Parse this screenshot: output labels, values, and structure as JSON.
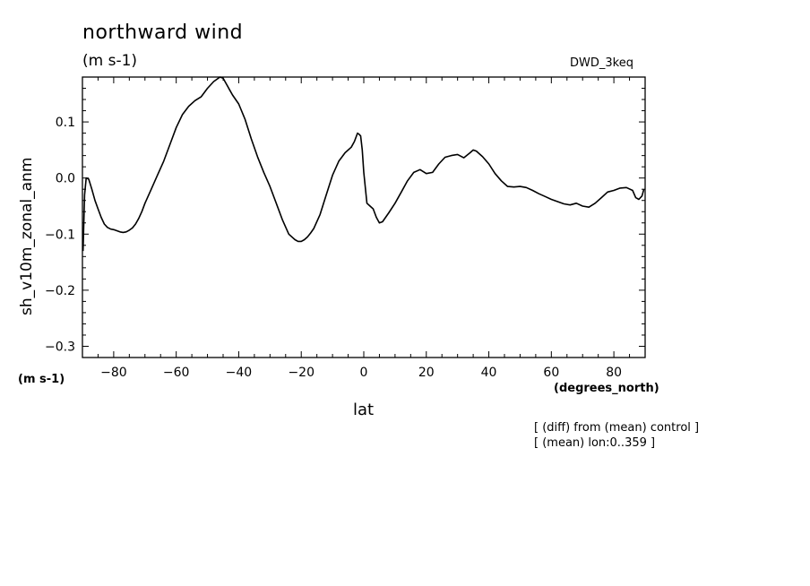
{
  "title": "northward wind",
  "units": "(m s-1)",
  "source": "DWD_3keq",
  "notes": {
    "line1": "[ (diff) from (mean) control ]",
    "line2": "[ (mean) lon:0..359 ]"
  },
  "chart_data": {
    "type": "line",
    "xlabel": "lat",
    "xunits": "(degrees_north)",
    "ylabel": "sh_v10m_zonal_anm",
    "yunits": "(m s-1)",
    "xlim": [
      -90,
      90
    ],
    "ylim": [
      -0.32,
      0.18
    ],
    "xticks": [
      -80,
      -60,
      -40,
      -20,
      0,
      20,
      40,
      60,
      80
    ],
    "xtick_labels": [
      "−80",
      "−60",
      "−40",
      "−20",
      "0",
      "20",
      "40",
      "60",
      "80"
    ],
    "yticks": [
      -0.3,
      -0.2,
      -0.1,
      0.0,
      0.1
    ],
    "ytick_labels": [
      "−0.3",
      "−0.2",
      "−0.1",
      "0.0",
      "0.1"
    ],
    "grid": false,
    "series": [
      {
        "color": "#000000",
        "x": [
          -89.8,
          -89.3,
          -88.8,
          -88,
          -87,
          -86,
          -85,
          -84,
          -83,
          -82,
          -81,
          -80,
          -79,
          -78,
          -77,
          -76,
          -75,
          -74,
          -73,
          -72,
          -71,
          -70,
          -68,
          -66,
          -64,
          -62,
          -60,
          -58,
          -56,
          -54,
          -52,
          -50,
          -48,
          -46,
          -45,
          -44,
          -43,
          -42,
          -40,
          -38,
          -36,
          -34,
          -32,
          -30,
          -28,
          -26,
          -24,
          -22,
          -21,
          -20,
          -19,
          -18,
          -17,
          -16,
          -14,
          -12,
          -10,
          -8,
          -6,
          -4,
          -3,
          -2,
          -1.5,
          -1,
          -0.5,
          0,
          1,
          2,
          3,
          4,
          5,
          6,
          8,
          10,
          12,
          14,
          16,
          18,
          20,
          22,
          24,
          26,
          28,
          30,
          32,
          34,
          35,
          36,
          38,
          40,
          42,
          44,
          46,
          48,
          50,
          52,
          54,
          56,
          58,
          60,
          62,
          64,
          66,
          68,
          70,
          72,
          74,
          76,
          78,
          80,
          82,
          84,
          86,
          87,
          88,
          89,
          89.6
        ],
        "values": [
          -0.13,
          -0.03,
          0.0,
          -0.002,
          -0.02,
          -0.04,
          -0.055,
          -0.07,
          -0.082,
          -0.088,
          -0.091,
          -0.092,
          -0.094,
          -0.096,
          -0.097,
          -0.096,
          -0.093,
          -0.089,
          -0.082,
          -0.072,
          -0.06,
          -0.045,
          -0.02,
          0.005,
          0.03,
          0.06,
          0.09,
          0.113,
          0.128,
          0.138,
          0.145,
          0.16,
          0.172,
          0.18,
          0.178,
          0.168,
          0.158,
          0.148,
          0.132,
          0.105,
          0.07,
          0.038,
          0.01,
          -0.015,
          -0.045,
          -0.075,
          -0.1,
          -0.11,
          -0.113,
          -0.113,
          -0.11,
          -0.105,
          -0.098,
          -0.09,
          -0.065,
          -0.03,
          0.005,
          0.03,
          0.045,
          0.055,
          0.065,
          0.08,
          0.078,
          0.075,
          0.05,
          0.01,
          -0.045,
          -0.05,
          -0.055,
          -0.07,
          -0.08,
          -0.078,
          -0.062,
          -0.045,
          -0.025,
          -0.005,
          0.01,
          0.015,
          0.008,
          0.01,
          0.025,
          0.037,
          0.04,
          0.042,
          0.036,
          0.045,
          0.05,
          0.048,
          0.038,
          0.025,
          0.008,
          -0.005,
          -0.015,
          -0.016,
          -0.015,
          -0.017,
          -0.022,
          -0.028,
          -0.033,
          -0.038,
          -0.042,
          -0.046,
          -0.048,
          -0.045,
          -0.05,
          -0.052,
          -0.045,
          -0.035,
          -0.025,
          -0.022,
          -0.018,
          -0.017,
          -0.022,
          -0.035,
          -0.038,
          -0.032,
          -0.02
        ]
      }
    ]
  }
}
